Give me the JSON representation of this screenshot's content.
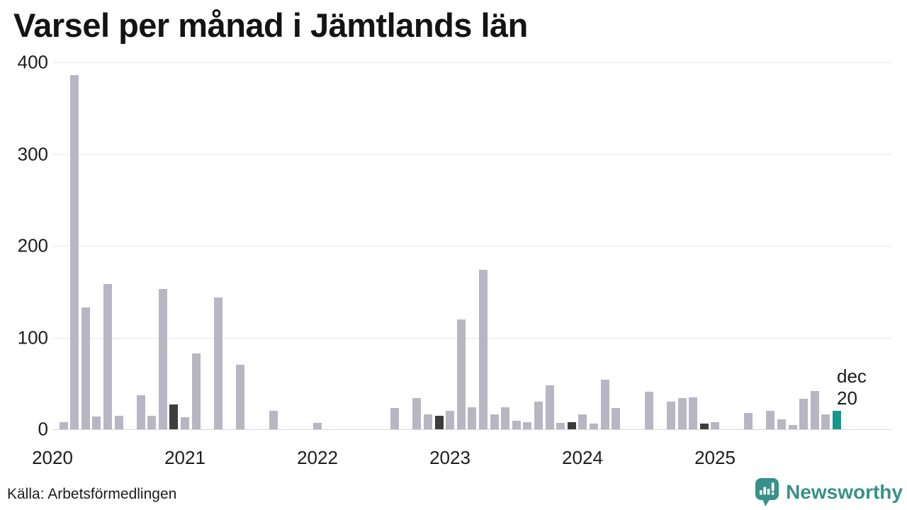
{
  "page": {
    "title": "Varsel per månad i Jämtlands län",
    "source": "Källa: Arbetsförmedlingen",
    "brand_name": "Newsworthy"
  },
  "annotation": {
    "month_label": "dec",
    "value_label": "20"
  },
  "colors": {
    "bar_default": "#b9b6c3",
    "bar_december": "#3d3d3d",
    "bar_highlight": "#13988a",
    "grid_line": "#e8e7ee",
    "axis_line": "#d6d4dd",
    "text": "#1c1c1c",
    "brand_teal": "#36918a"
  },
  "chart_data": {
    "type": "bar",
    "title": "Varsel per månad i Jämtlands län",
    "xlabel": "",
    "ylabel": "",
    "ylim": [
      0,
      400
    ],
    "yticks": [
      0,
      100,
      200,
      300,
      400
    ],
    "xticks": [
      "2020",
      "2021",
      "2022",
      "2023",
      "2024",
      "2025"
    ],
    "grid": "horizontal-only",
    "legend": "none",
    "start_month": "2020-01",
    "months_per_year": 12,
    "december_months_dark": [
      "2020-12",
      "2022-12",
      "2023-12",
      "2024-12"
    ],
    "highlight": {
      "month": "2025-12",
      "value": 20,
      "annotation": "dec 20"
    },
    "series": [
      {
        "name": "Varsel per månad",
        "values": [
          0,
          8,
          386,
          133,
          14,
          158,
          15,
          0,
          37,
          15,
          153,
          27,
          13,
          83,
          0,
          144,
          0,
          70,
          0,
          0,
          20,
          0,
          0,
          0,
          7,
          0,
          0,
          0,
          0,
          0,
          0,
          23,
          0,
          34,
          16,
          15,
          20,
          120,
          24,
          174,
          16,
          24,
          9,
          8,
          30,
          48,
          7,
          8,
          16,
          6,
          54,
          23,
          0,
          0,
          41,
          0,
          30,
          34,
          35,
          6,
          8,
          0,
          0,
          18,
          0,
          20,
          11,
          5,
          33,
          42,
          16,
          20
        ]
      }
    ]
  }
}
